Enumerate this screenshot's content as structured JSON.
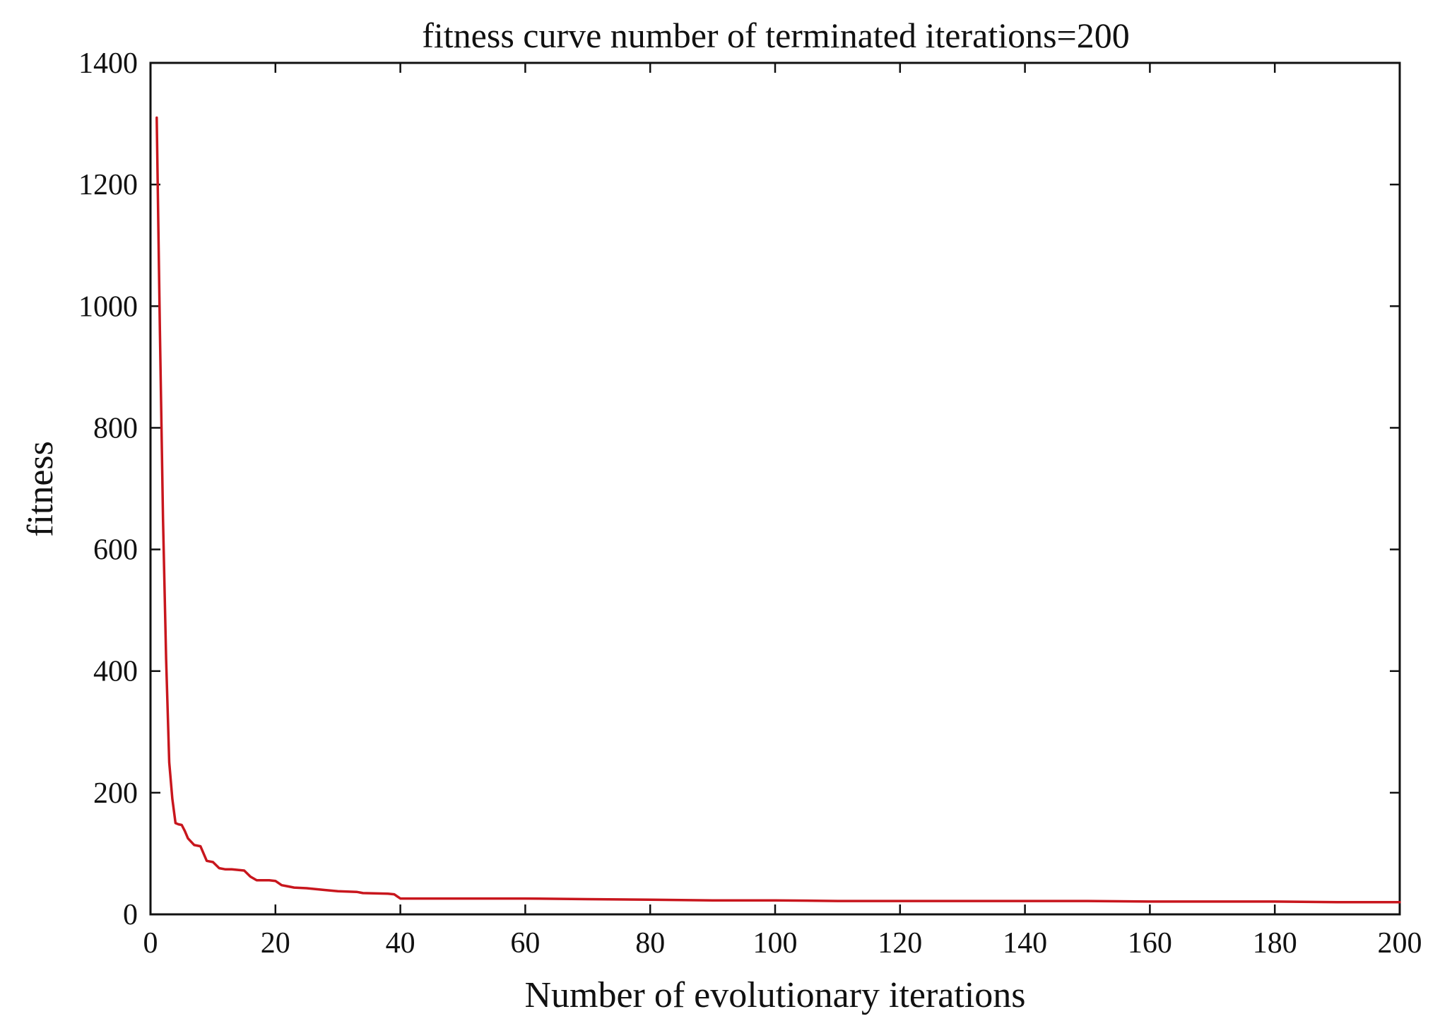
{
  "chart_data": {
    "type": "line",
    "title": "fitness curve number of terminated iterations=200",
    "xlabel": "Number of evolutionary iterations",
    "ylabel": "fitness",
    "xlim": [
      0,
      200
    ],
    "ylim": [
      0,
      1400
    ],
    "xticks": [
      0,
      20,
      40,
      60,
      80,
      100,
      120,
      140,
      160,
      180,
      200
    ],
    "yticks": [
      0,
      200,
      400,
      600,
      800,
      1000,
      1200,
      1400
    ],
    "grid": false,
    "line_color": "#c8161d",
    "series": [
      {
        "name": "fitness",
        "x": [
          1,
          1.5,
          2,
          2.5,
          3,
          3.5,
          4,
          4.5,
          5,
          5.5,
          6,
          7,
          8,
          9,
          10,
          11,
          12,
          13,
          15,
          16,
          17,
          18,
          19,
          20,
          21,
          22,
          23,
          25,
          28,
          30,
          33,
          34,
          38,
          39,
          40,
          45,
          50,
          60,
          70,
          80,
          90,
          100,
          110,
          120,
          130,
          140,
          150,
          160,
          170,
          180,
          190,
          200
        ],
        "values": [
          1310,
          960,
          650,
          420,
          250,
          190,
          150,
          148,
          147,
          137,
          125,
          114,
          112,
          88,
          86,
          76,
          74,
          74,
          72,
          62,
          56,
          56,
          56,
          55,
          48,
          46,
          44,
          43,
          40,
          38,
          37,
          35,
          34,
          33,
          26,
          26,
          26,
          26,
          25,
          24,
          23,
          23,
          22,
          22,
          22,
          22,
          22,
          21,
          21,
          21,
          20,
          20
        ]
      }
    ]
  }
}
